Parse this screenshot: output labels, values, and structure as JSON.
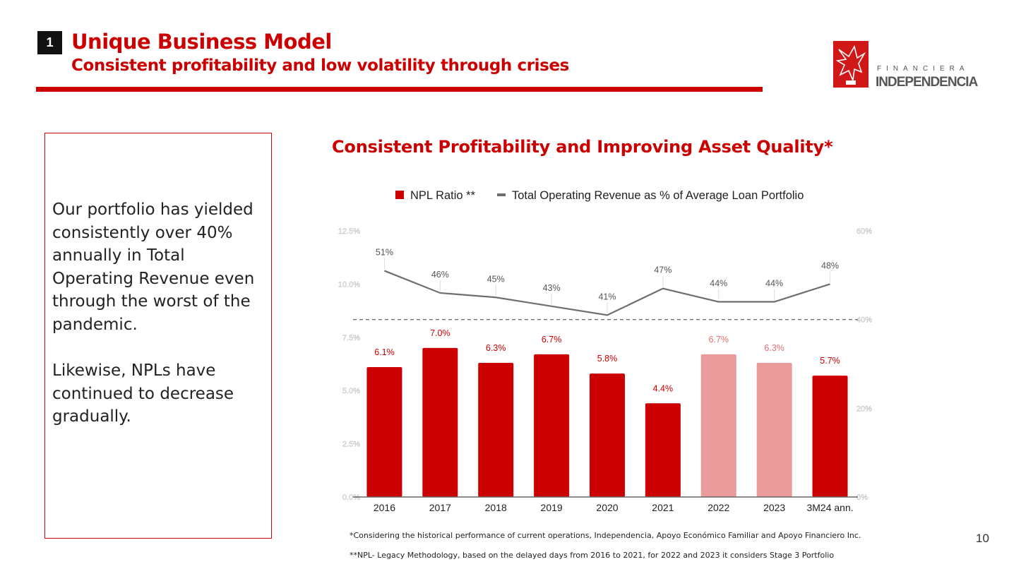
{
  "header": {
    "section_number": "1",
    "title": "Unique Business Model",
    "subtitle": "Consistent profitability and low volatility through crises"
  },
  "logo": {
    "top_text": "FINANCIERA",
    "bottom_text": "INDEPENDENCIA"
  },
  "textbox": {
    "paragraph1": "Our portfolio has yielded consistently over 40% annually in Total Operating Revenue even through the worst of the pandemic.",
    "paragraph2": "Likewise, NPLs have continued to decrease gradually."
  },
  "chart_title": "Consistent Profitability and Improving Asset Quality*",
  "chart_data": {
    "type": "bar",
    "title": "Consistent Profitability and Improving Asset Quality*",
    "categories": [
      "2016",
      "2017",
      "2018",
      "2019",
      "2020",
      "2021",
      "2022",
      "2023",
      "3M24 ann."
    ],
    "series": [
      {
        "name": "NPL Ratio **",
        "type": "bar",
        "axis": "left",
        "values": [
          6.1,
          7.0,
          6.3,
          6.7,
          5.8,
          4.4,
          6.7,
          6.3,
          5.7
        ],
        "labels": [
          "6.1%",
          "7.0%",
          "6.3%",
          "6.7%",
          "5.8%",
          "4.4%",
          "6.7%",
          "6.3%",
          "5.7%"
        ],
        "colors": [
          "#cc0000",
          "#cc0000",
          "#cc0000",
          "#cc0000",
          "#cc0000",
          "#cc0000",
          "#e99a9a",
          "#e99a9a",
          "#cc0000"
        ]
      },
      {
        "name": "Total Operating Revenue as % of Average Loan Portfolio",
        "type": "line",
        "axis": "right",
        "values": [
          51,
          46,
          45,
          43,
          41,
          47,
          44,
          44,
          48
        ],
        "labels": [
          "51%",
          "46%",
          "45%",
          "43%",
          "41%",
          "47%",
          "44%",
          "44%",
          "48%"
        ],
        "color": "#6e6e6e"
      }
    ],
    "left_axis": {
      "ylim": [
        0,
        12.5
      ],
      "ticks": [
        "0.0%",
        "2.5%",
        "5.0%",
        "7.5%",
        "10.0%",
        "12.5%"
      ]
    },
    "right_axis": {
      "ylim": [
        0,
        60
      ],
      "ticks": [
        "0%",
        "20%",
        "40%",
        "60%"
      ]
    },
    "reference_line": {
      "value": 40,
      "axis": "right",
      "style": "dashed"
    },
    "legend": {
      "placement": "top"
    },
    "grid": false
  },
  "footnotes": [
    "*Considering the historical performance of current operations, Independencia, Apoyo Económico Familiar and Apoyo Financiero Inc.",
    "**NPL- Legacy Methodology, based on the delayed days from 2016 to 2021, for 2022 and 2023 it considers Stage 3 Portfolio"
  ],
  "page_number": "10"
}
